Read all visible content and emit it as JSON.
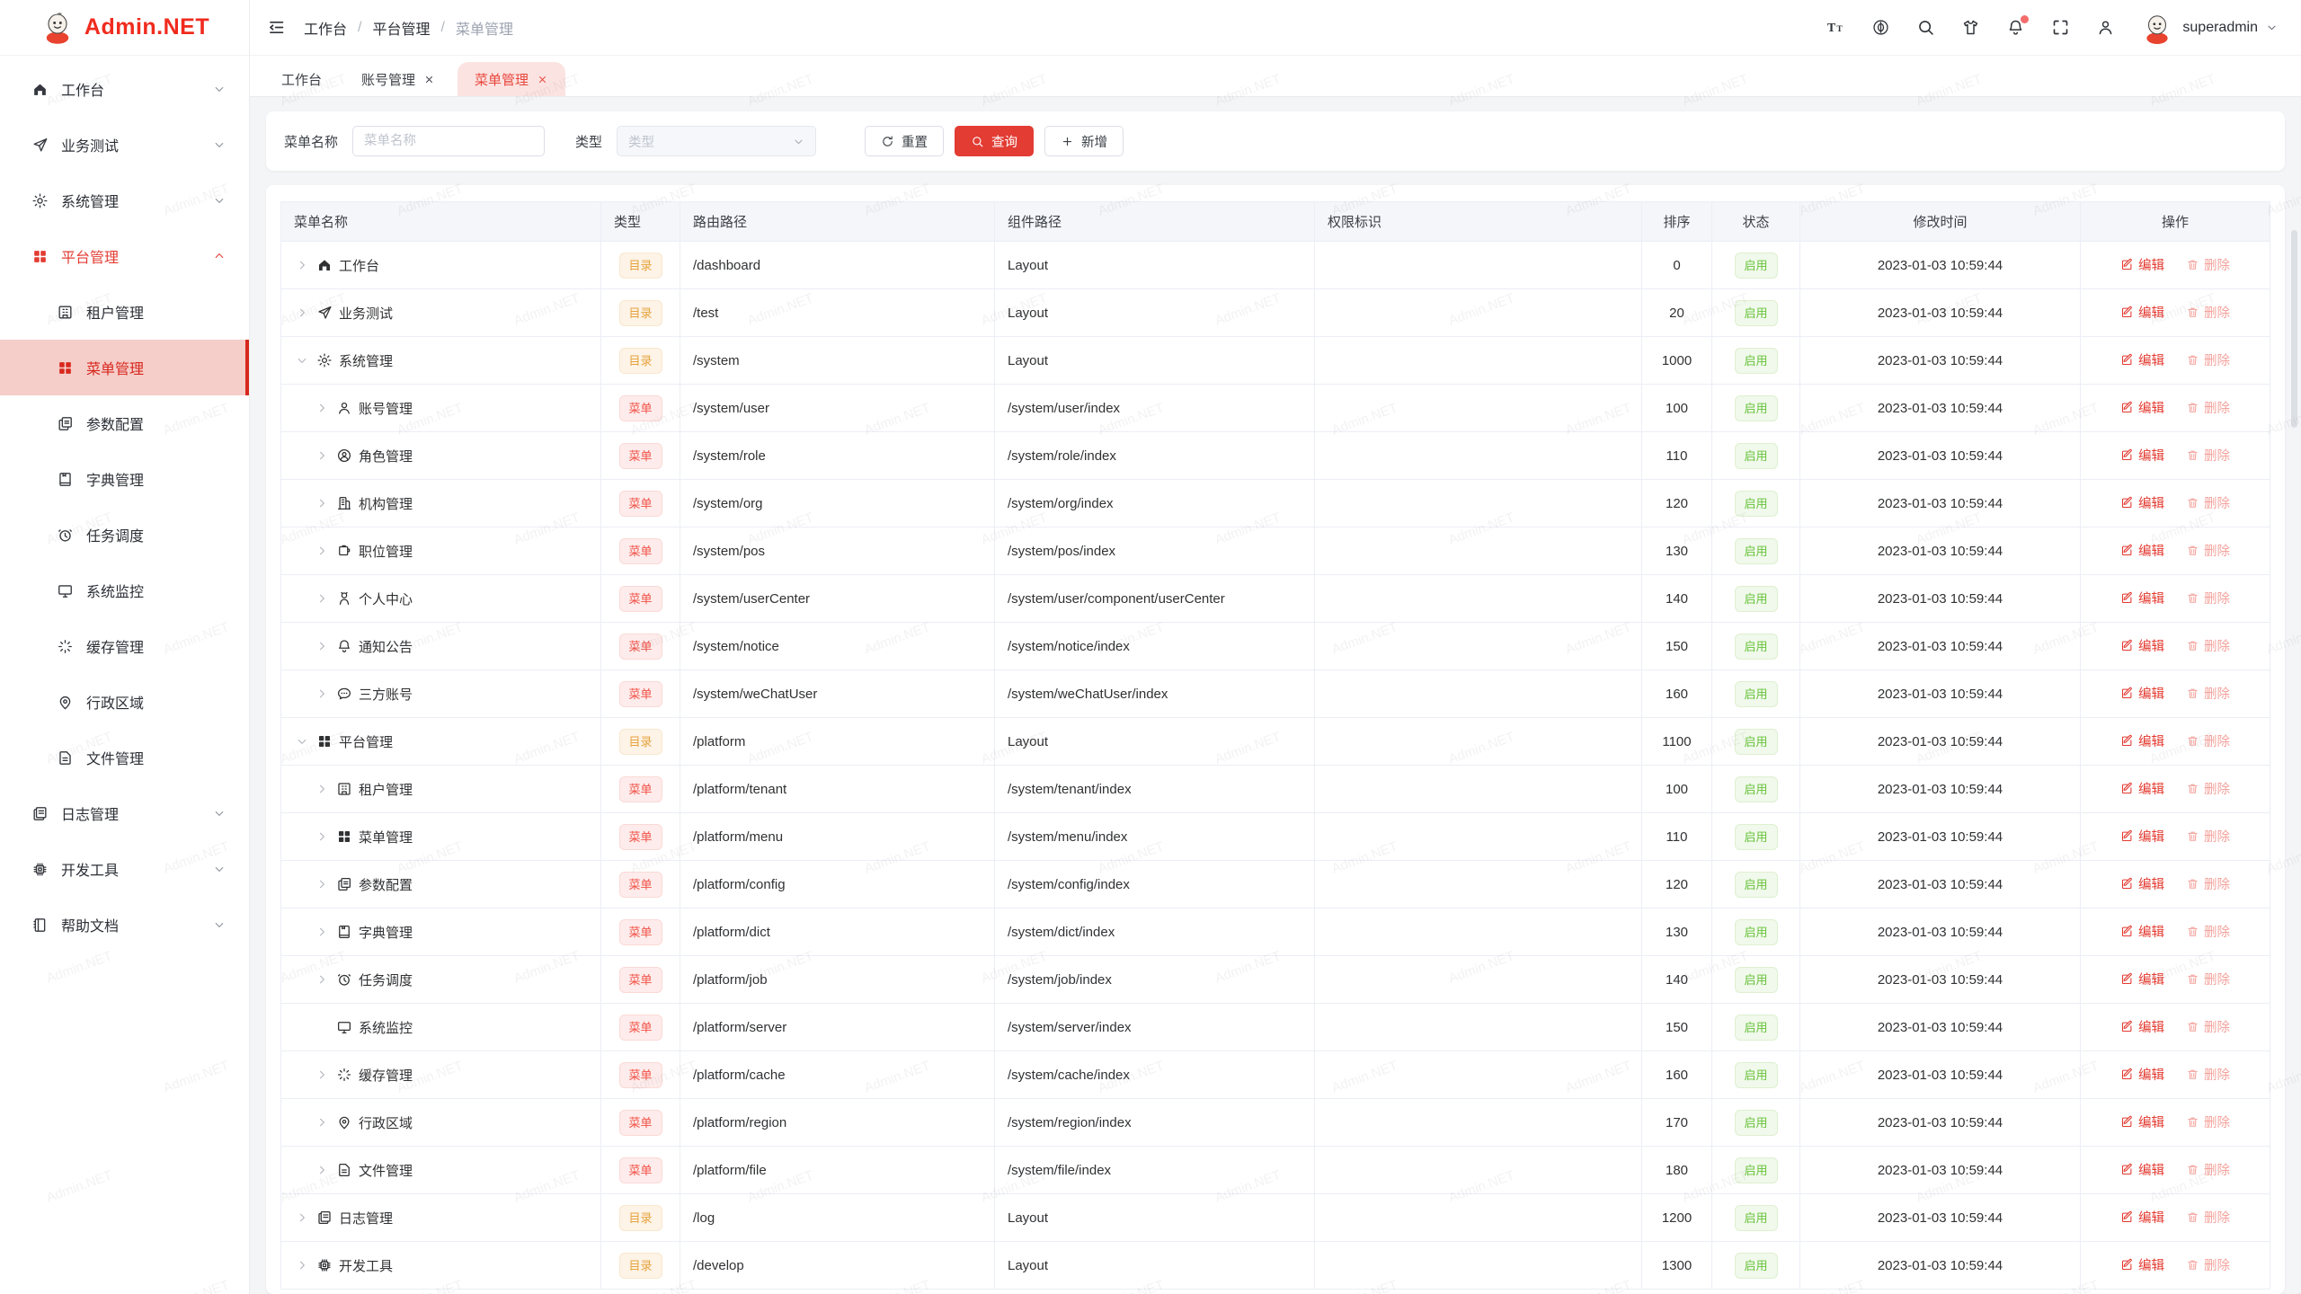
{
  "app": {
    "logo_text": "Admin.NET",
    "watermark_text": "Admin.NET"
  },
  "header": {
    "breadcrumb": [
      "工作台",
      "平台管理",
      "菜单管理"
    ],
    "breadcrumb_separator": "/",
    "icons": [
      {
        "key": "font-size"
      },
      {
        "key": "language"
      },
      {
        "key": "search"
      },
      {
        "key": "theme"
      },
      {
        "key": "notification",
        "badge": true
      },
      {
        "key": "fullscreen"
      },
      {
        "key": "user"
      }
    ],
    "user": "superadmin"
  },
  "tabs": [
    {
      "label": "工作台",
      "closable": false,
      "active": false
    },
    {
      "label": "账号管理",
      "closable": true,
      "active": false
    },
    {
      "label": "菜单管理",
      "closable": true,
      "active": true
    }
  ],
  "sidebar": {
    "items": [
      {
        "key": "workbench",
        "label": "工作台",
        "icon": "home",
        "expand": "down"
      },
      {
        "key": "business-test",
        "label": "业务测试",
        "icon": "send",
        "expand": "down"
      },
      {
        "key": "system",
        "label": "系统管理",
        "icon": "gear",
        "expand": "down"
      },
      {
        "key": "platform",
        "label": "平台管理",
        "icon": "grid",
        "expand": "up",
        "active": true,
        "children": [
          {
            "key": "tenant",
            "label": "租户管理",
            "icon": "tenant"
          },
          {
            "key": "menu",
            "label": "菜单管理",
            "icon": "grid",
            "active": true
          },
          {
            "key": "config",
            "label": "参数配置",
            "icon": "copy-doc"
          },
          {
            "key": "dict",
            "label": "字典管理",
            "icon": "notebook"
          },
          {
            "key": "job",
            "label": "任务调度",
            "icon": "alarm"
          },
          {
            "key": "server",
            "label": "系统监控",
            "icon": "monitor"
          },
          {
            "key": "cache",
            "label": "缓存管理",
            "icon": "loading"
          },
          {
            "key": "region",
            "label": "行政区域",
            "icon": "location"
          },
          {
            "key": "file",
            "label": "文件管理",
            "icon": "doc"
          }
        ]
      },
      {
        "key": "log",
        "label": "日志管理",
        "icon": "log",
        "expand": "down"
      },
      {
        "key": "develop",
        "label": "开发工具",
        "icon": "cpu",
        "expand": "down"
      },
      {
        "key": "help",
        "label": "帮助文档",
        "icon": "book",
        "expand": "down"
      }
    ]
  },
  "filter": {
    "name_label": "菜单名称",
    "name_placeholder": "菜单名称",
    "type_label": "类型",
    "type_placeholder": "类型",
    "reset_label": "重置",
    "search_label": "查询",
    "add_label": "新增"
  },
  "table": {
    "columns": [
      "菜单名称",
      "类型",
      "路由路径",
      "组件路径",
      "权限标识",
      "排序",
      "状态",
      "修改时间",
      "操作"
    ],
    "type_dir": "目录",
    "type_menu": "菜单",
    "status_enabled": "启用",
    "edit_label": "编辑",
    "delete_label": "删除",
    "rows": [
      {
        "name": "工作台",
        "icon": "home",
        "level": 0,
        "arrow": "right",
        "type": "dir",
        "route": "/dashboard",
        "component": "Layout",
        "permission": "",
        "sort": "0",
        "time": "2023-01-03 10:59:44"
      },
      {
        "name": "业务测试",
        "icon": "send",
        "level": 0,
        "arrow": "right",
        "type": "dir",
        "route": "/test",
        "component": "Layout",
        "permission": "",
        "sort": "20",
        "time": "2023-01-03 10:59:44"
      },
      {
        "name": "系统管理",
        "icon": "gear",
        "level": 0,
        "arrow": "down",
        "type": "dir",
        "route": "/system",
        "component": "Layout",
        "permission": "",
        "sort": "1000",
        "time": "2023-01-03 10:59:44"
      },
      {
        "name": "账号管理",
        "icon": "user",
        "level": 1,
        "arrow": "right",
        "type": "menu",
        "route": "/system/user",
        "component": "/system/user/index",
        "permission": "",
        "sort": "100",
        "time": "2023-01-03 10:59:44"
      },
      {
        "name": "角色管理",
        "icon": "role",
        "level": 1,
        "arrow": "right",
        "type": "menu",
        "route": "/system/role",
        "component": "/system/role/index",
        "permission": "",
        "sort": "110",
        "time": "2023-01-03 10:59:44"
      },
      {
        "name": "机构管理",
        "icon": "org",
        "level": 1,
        "arrow": "right",
        "type": "menu",
        "route": "/system/org",
        "component": "/system/org/index",
        "permission": "",
        "sort": "120",
        "time": "2023-01-03 10:59:44"
      },
      {
        "name": "职位管理",
        "icon": "pos",
        "level": 1,
        "arrow": "right",
        "type": "menu",
        "route": "/system/pos",
        "component": "/system/pos/index",
        "permission": "",
        "sort": "130",
        "time": "2023-01-03 10:59:44"
      },
      {
        "name": "个人中心",
        "icon": "user-center",
        "level": 1,
        "arrow": "right",
        "type": "menu",
        "route": "/system/userCenter",
        "component": "/system/user/component/userCenter",
        "permission": "",
        "sort": "140",
        "time": "2023-01-03 10:59:44"
      },
      {
        "name": "通知公告",
        "icon": "bell",
        "level": 1,
        "arrow": "right",
        "type": "menu",
        "route": "/system/notice",
        "component": "/system/notice/index",
        "permission": "",
        "sort": "150",
        "time": "2023-01-03 10:59:44"
      },
      {
        "name": "三方账号",
        "icon": "chat",
        "level": 1,
        "arrow": "right",
        "type": "menu",
        "route": "/system/weChatUser",
        "component": "/system/weChatUser/index",
        "permission": "",
        "sort": "160",
        "time": "2023-01-03 10:59:44"
      },
      {
        "name": "平台管理",
        "icon": "grid",
        "level": 0,
        "arrow": "down",
        "type": "dir",
        "route": "/platform",
        "component": "Layout",
        "permission": "",
        "sort": "1100",
        "time": "2023-01-03 10:59:44"
      },
      {
        "name": "租户管理",
        "icon": "tenant",
        "level": 1,
        "arrow": "right",
        "type": "menu",
        "route": "/platform/tenant",
        "component": "/system/tenant/index",
        "permission": "",
        "sort": "100",
        "time": "2023-01-03 10:59:44"
      },
      {
        "name": "菜单管理",
        "icon": "grid",
        "level": 1,
        "arrow": "right",
        "type": "menu",
        "route": "/platform/menu",
        "component": "/system/menu/index",
        "permission": "",
        "sort": "110",
        "time": "2023-01-03 10:59:44"
      },
      {
        "name": "参数配置",
        "icon": "copy-doc",
        "level": 1,
        "arrow": "right",
        "type": "menu",
        "route": "/platform/config",
        "component": "/system/config/index",
        "permission": "",
        "sort": "120",
        "time": "2023-01-03 10:59:44"
      },
      {
        "name": "字典管理",
        "icon": "notebook",
        "level": 1,
        "arrow": "right",
        "type": "menu",
        "route": "/platform/dict",
        "component": "/system/dict/index",
        "permission": "",
        "sort": "130",
        "time": "2023-01-03 10:59:44"
      },
      {
        "name": "任务调度",
        "icon": "alarm",
        "level": 1,
        "arrow": "right",
        "type": "menu",
        "route": "/platform/job",
        "component": "/system/job/index",
        "permission": "",
        "sort": "140",
        "time": "2023-01-03 10:59:44"
      },
      {
        "name": "系统监控",
        "icon": "monitor",
        "level": 1,
        "arrow": "none",
        "type": "menu",
        "route": "/platform/server",
        "component": "/system/server/index",
        "permission": "",
        "sort": "150",
        "time": "2023-01-03 10:59:44"
      },
      {
        "name": "缓存管理",
        "icon": "loading",
        "level": 1,
        "arrow": "right",
        "type": "menu",
        "route": "/platform/cache",
        "component": "/system/cache/index",
        "permission": "",
        "sort": "160",
        "time": "2023-01-03 10:59:44"
      },
      {
        "name": "行政区域",
        "icon": "location",
        "level": 1,
        "arrow": "right",
        "type": "menu",
        "route": "/platform/region",
        "component": "/system/region/index",
        "permission": "",
        "sort": "170",
        "time": "2023-01-03 10:59:44"
      },
      {
        "name": "文件管理",
        "icon": "doc",
        "level": 1,
        "arrow": "right",
        "type": "menu",
        "route": "/platform/file",
        "component": "/system/file/index",
        "permission": "",
        "sort": "180",
        "time": "2023-01-03 10:59:44"
      },
      {
        "name": "日志管理",
        "icon": "log",
        "level": 0,
        "arrow": "right",
        "type": "dir",
        "route": "/log",
        "component": "Layout",
        "permission": "",
        "sort": "1200",
        "time": "2023-01-03 10:59:44"
      },
      {
        "name": "开发工具",
        "icon": "cpu",
        "level": 0,
        "arrow": "right",
        "type": "dir",
        "route": "/develop",
        "component": "Layout",
        "permission": "",
        "sort": "1300",
        "time": "2023-01-03 10:59:44"
      }
    ]
  }
}
